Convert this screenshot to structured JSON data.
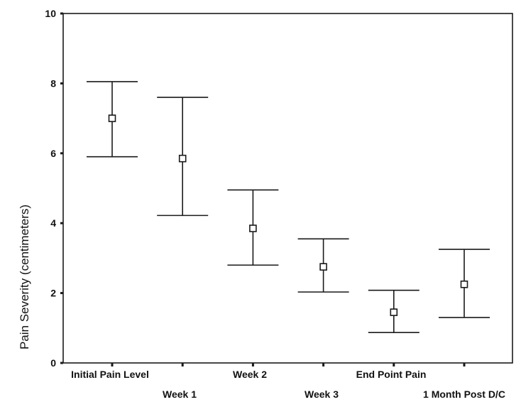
{
  "chart_data": {
    "type": "errorbar",
    "title": "",
    "xlabel": "",
    "ylabel": "Pain Severity (centimeters)",
    "ylim": [
      0,
      10
    ],
    "yticks": [
      0,
      2,
      4,
      6,
      8,
      10
    ],
    "grid": false,
    "categories": [
      "Initial Pain Level",
      "Week 1",
      "Week 2",
      "Week 3",
      "End Point Pain",
      "1 Month Post D/C"
    ],
    "mean": [
      7.0,
      5.85,
      3.85,
      2.75,
      1.45,
      2.25
    ],
    "upper": [
      8.05,
      7.6,
      4.95,
      3.55,
      2.08,
      3.25
    ],
    "lower": [
      5.9,
      4.22,
      2.8,
      2.03,
      0.87,
      1.3
    ],
    "marker": "square"
  }
}
